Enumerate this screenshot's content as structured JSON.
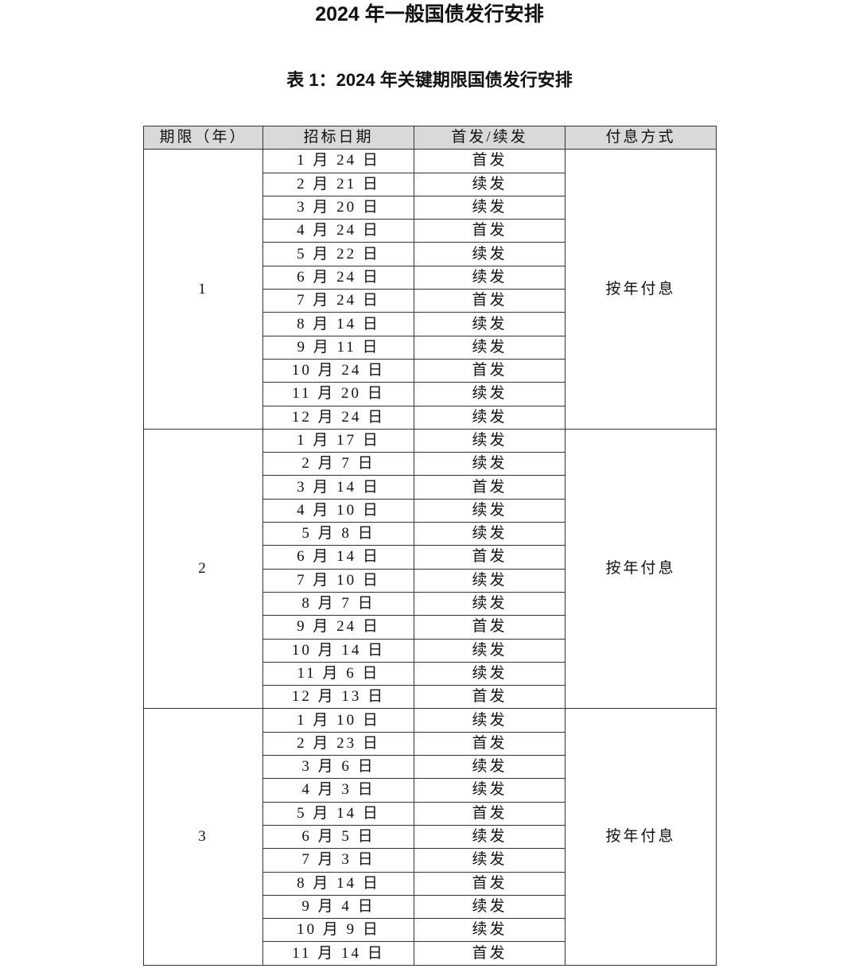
{
  "title": "2024 年一般国债发行安排",
  "subtitle": "表 1：2024 年关键期限国债发行安排",
  "table": {
    "headers": [
      "期限（年）",
      "招标日期",
      "首发/续发",
      "付息方式"
    ],
    "groups": [
      {
        "term": "1",
        "payment": "按年付息",
        "rows": [
          [
            "1 月 24 日",
            "首发"
          ],
          [
            "2 月 21 日",
            "续发"
          ],
          [
            "3 月 20 日",
            "续发"
          ],
          [
            "4 月 24 日",
            "首发"
          ],
          [
            "5 月 22 日",
            "续发"
          ],
          [
            "6 月 24 日",
            "续发"
          ],
          [
            "7 月 24 日",
            "首发"
          ],
          [
            "8 月 14 日",
            "续发"
          ],
          [
            "9 月 11 日",
            "续发"
          ],
          [
            "10 月 24 日",
            "首发"
          ],
          [
            "11 月 20 日",
            "续发"
          ],
          [
            "12 月 24 日",
            "续发"
          ]
        ]
      },
      {
        "term": "2",
        "payment": "按年付息",
        "rows": [
          [
            "1 月 17 日",
            "续发"
          ],
          [
            "2 月 7 日",
            "续发"
          ],
          [
            "3 月 14 日",
            "首发"
          ],
          [
            "4 月 10 日",
            "续发"
          ],
          [
            "5 月 8 日",
            "续发"
          ],
          [
            "6 月 14 日",
            "首发"
          ],
          [
            "7 月 10 日",
            "续发"
          ],
          [
            "8 月 7 日",
            "续发"
          ],
          [
            "9 月 24 日",
            "首发"
          ],
          [
            "10 月 14 日",
            "续发"
          ],
          [
            "11 月 6 日",
            "续发"
          ],
          [
            "12 月 13 日",
            "首发"
          ]
        ]
      },
      {
        "term": "3",
        "payment": "按年付息",
        "rows": [
          [
            "1 月 10 日",
            "续发"
          ],
          [
            "2 月 23 日",
            "首发"
          ],
          [
            "3 月 6 日",
            "续发"
          ],
          [
            "4 月 3 日",
            "续发"
          ],
          [
            "5 月 14 日",
            "首发"
          ],
          [
            "6 月 5 日",
            "续发"
          ],
          [
            "7 月 3 日",
            "续发"
          ],
          [
            "8 月 14 日",
            "首发"
          ],
          [
            "9 月 4 日",
            "续发"
          ],
          [
            "10 月 9 日",
            "续发"
          ],
          [
            "11 月 14 日",
            "首发"
          ]
        ]
      }
    ]
  }
}
